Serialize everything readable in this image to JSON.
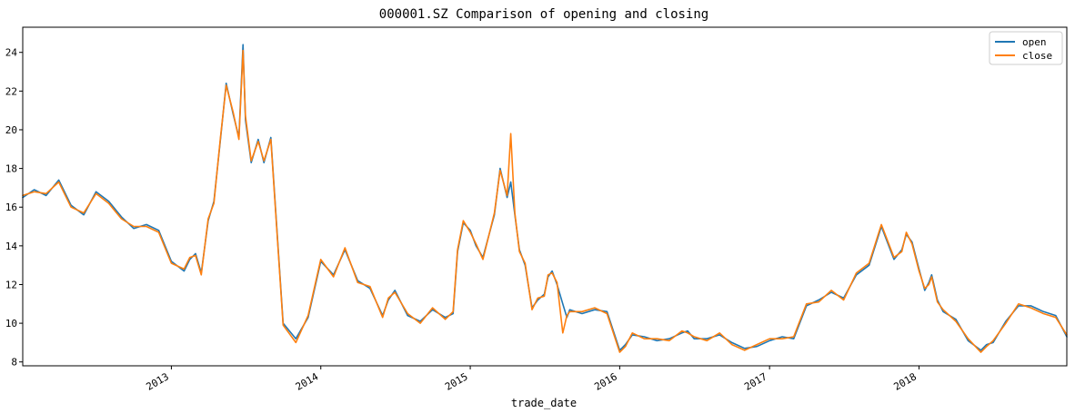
{
  "chart_data": {
    "type": "line",
    "title": "000001.SZ Comparison of opening and closing",
    "xlabel": "trade_date",
    "ylabel": "",
    "x_range": [
      "2012-01-04",
      "2018-12-28"
    ],
    "ylim": [
      7.8,
      25.3
    ],
    "y_ticks": [
      8,
      10,
      12,
      14,
      16,
      18,
      20,
      22,
      24
    ],
    "x_ticks": [
      "2013",
      "2014",
      "2015",
      "2016",
      "2017",
      "2018"
    ],
    "grid": false,
    "legend_position": "top-right",
    "colors": {
      "open": "#1f77b4",
      "close": "#ff7f0e"
    },
    "x": [
      "2012-01-04",
      "2012-02-01",
      "2012-03-01",
      "2012-04-01",
      "2012-05-01",
      "2012-06-01",
      "2012-07-01",
      "2012-08-01",
      "2012-09-01",
      "2012-10-01",
      "2012-11-01",
      "2012-12-01",
      "2013-01-01",
      "2013-02-01",
      "2013-02-15",
      "2013-03-01",
      "2013-03-15",
      "2013-04-01",
      "2013-04-15",
      "2013-05-01",
      "2013-05-15",
      "2013-06-01",
      "2013-06-15",
      "2013-06-25",
      "2013-07-01",
      "2013-07-15",
      "2013-08-01",
      "2013-08-15",
      "2013-09-01",
      "2013-10-01",
      "2013-11-01",
      "2013-12-01",
      "2014-01-01",
      "2014-02-01",
      "2014-03-01",
      "2014-04-01",
      "2014-05-01",
      "2014-06-01",
      "2014-06-15",
      "2014-07-01",
      "2014-08-01",
      "2014-09-01",
      "2014-10-01",
      "2014-11-01",
      "2014-11-20",
      "2014-12-01",
      "2014-12-15",
      "2015-01-01",
      "2015-01-15",
      "2015-02-01",
      "2015-03-01",
      "2015-03-15",
      "2015-04-01",
      "2015-04-10",
      "2015-04-20",
      "2015-05-01",
      "2015-05-15",
      "2015-06-01",
      "2015-06-15",
      "2015-07-01",
      "2015-07-10",
      "2015-07-20",
      "2015-08-01",
      "2015-08-15",
      "2015-08-25",
      "2015-09-01",
      "2015-10-01",
      "2015-11-01",
      "2015-12-01",
      "2016-01-01",
      "2016-01-15",
      "2016-02-01",
      "2016-03-01",
      "2016-04-01",
      "2016-05-01",
      "2016-06-01",
      "2016-06-15",
      "2016-07-01",
      "2016-08-01",
      "2016-09-01",
      "2016-10-01",
      "2016-11-01",
      "2016-12-01",
      "2017-01-01",
      "2017-02-01",
      "2017-03-01",
      "2017-04-01",
      "2017-05-01",
      "2017-06-01",
      "2017-07-01",
      "2017-08-01",
      "2017-09-01",
      "2017-10-01",
      "2017-11-01",
      "2017-11-20",
      "2017-12-01",
      "2017-12-15",
      "2018-01-01",
      "2018-01-15",
      "2018-01-25",
      "2018-02-01",
      "2018-02-15",
      "2018-03-01",
      "2018-04-01",
      "2018-05-01",
      "2018-06-01",
      "2018-06-15",
      "2018-07-01",
      "2018-08-01",
      "2018-09-01",
      "2018-10-01",
      "2018-11-01",
      "2018-12-01",
      "2018-12-28"
    ],
    "series": [
      {
        "name": "open",
        "values": [
          16.5,
          16.9,
          16.6,
          17.4,
          16.1,
          15.6,
          16.8,
          16.3,
          15.5,
          14.9,
          15.1,
          14.8,
          13.2,
          12.7,
          13.3,
          13.6,
          12.6,
          15.3,
          16.3,
          19.5,
          22.4,
          20.8,
          19.6,
          24.4,
          20.5,
          18.3,
          19.5,
          18.3,
          19.6,
          10.0,
          9.2,
          10.3,
          13.2,
          12.5,
          13.8,
          12.2,
          11.8,
          10.4,
          11.2,
          11.7,
          10.4,
          10.1,
          10.7,
          10.3,
          10.5,
          13.7,
          15.2,
          14.8,
          14.0,
          13.4,
          15.6,
          18.0,
          16.5,
          17.3,
          15.6,
          13.8,
          13.0,
          10.8,
          11.2,
          11.5,
          12.4,
          12.7,
          12.0,
          11.0,
          10.3,
          10.7,
          10.5,
          10.7,
          10.6,
          8.6,
          8.9,
          9.4,
          9.3,
          9.1,
          9.2,
          9.5,
          9.6,
          9.2,
          9.2,
          9.4,
          9.0,
          8.7,
          8.8,
          9.1,
          9.3,
          9.2,
          10.9,
          11.2,
          11.6,
          11.3,
          12.5,
          13.0,
          15.0,
          13.3,
          13.8,
          14.6,
          14.2,
          12.8,
          11.7,
          12.1,
          12.5,
          11.2,
          10.6,
          10.2,
          9.1,
          8.6,
          8.9,
          9.0,
          10.1,
          10.9,
          10.9,
          10.6,
          10.4,
          9.3
        ]
      },
      {
        "name": "close",
        "values": [
          16.6,
          16.8,
          16.7,
          17.3,
          16.0,
          15.7,
          16.7,
          16.2,
          15.4,
          15.0,
          15.0,
          14.7,
          13.1,
          12.8,
          13.4,
          13.5,
          12.5,
          15.4,
          16.2,
          19.6,
          22.3,
          20.9,
          19.5,
          24.1,
          20.7,
          18.4,
          19.4,
          18.4,
          19.5,
          9.9,
          9.0,
          10.4,
          13.3,
          12.4,
          13.9,
          12.1,
          11.9,
          10.3,
          11.3,
          11.6,
          10.5,
          10.0,
          10.8,
          10.2,
          10.6,
          13.8,
          15.3,
          14.7,
          14.1,
          13.3,
          15.7,
          17.9,
          16.6,
          19.8,
          15.7,
          13.7,
          13.1,
          10.7,
          11.3,
          11.4,
          12.5,
          12.6,
          12.1,
          9.5,
          10.4,
          10.6,
          10.6,
          10.8,
          10.5,
          8.5,
          8.8,
          9.5,
          9.2,
          9.2,
          9.1,
          9.6,
          9.5,
          9.3,
          9.1,
          9.5,
          8.9,
          8.6,
          8.9,
          9.2,
          9.2,
          9.3,
          11.0,
          11.1,
          11.7,
          11.2,
          12.6,
          13.1,
          15.1,
          13.4,
          13.7,
          14.7,
          14.1,
          12.7,
          11.8,
          12.0,
          12.4,
          11.1,
          10.7,
          10.1,
          9.2,
          8.5,
          8.8,
          9.1,
          10.0,
          11.0,
          10.8,
          10.5,
          10.3,
          9.4
        ]
      }
    ]
  }
}
